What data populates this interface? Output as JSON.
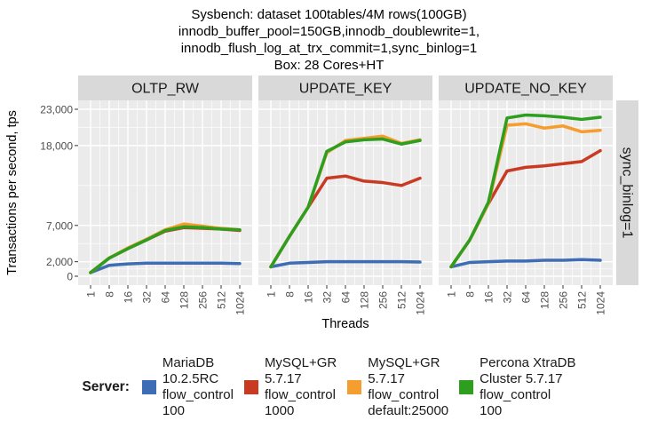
{
  "title_lines": [
    "Sysbench: dataset 100tables/4M rows(100GB)",
    "innodb_buffer_pool=150GB,innodb_doublewrite=1,",
    "innodb_flush_log_at_trx_commit=1,sync_binlog=1",
    "Box: 28 Cores+HT"
  ],
  "chart_data": {
    "type": "line",
    "facets": [
      "OLTP_RW",
      "UPDATE_KEY",
      "UPDATE_NO_KEY"
    ],
    "right_strip": "sync_binlog=1",
    "x": [
      1,
      8,
      16,
      32,
      64,
      128,
      256,
      512,
      1024
    ],
    "xlabel": "Threads",
    "ylabel": "Transactions per second, tps",
    "yticks": [
      0,
      2000,
      7000,
      18000,
      23000
    ],
    "ytick_labels": [
      "0",
      "2,000",
      "7,000",
      "18,000",
      "23,000"
    ],
    "ylim": [
      0,
      24200
    ],
    "legend_position": "bottom",
    "grid": true,
    "series": [
      {
        "name": "MariaDB 10.2.5RC flow_control 100",
        "color": "#3E6DB5",
        "values": {
          "OLTP_RW": [
            500,
            1500,
            1700,
            1800,
            1800,
            1800,
            1800,
            1800,
            1750
          ],
          "UPDATE_KEY": [
            1300,
            1800,
            1900,
            2000,
            2000,
            2000,
            2000,
            2000,
            1950
          ],
          "UPDATE_NO_KEY": [
            1300,
            1900,
            2000,
            2100,
            2100,
            2200,
            2200,
            2300,
            2200
          ]
        }
      },
      {
        "name": "MySQL+GR 5.7.17 flow_control 1000",
        "color": "#C93A23",
        "values": {
          "OLTP_RW": [
            500,
            2500,
            3800,
            5000,
            6200,
            6700,
            6600,
            6500,
            6300
          ],
          "UPDATE_KEY": [
            1300,
            5500,
            9500,
            13500,
            13800,
            13100,
            12900,
            12500,
            13500
          ],
          "UPDATE_NO_KEY": [
            1300,
            5000,
            10000,
            14500,
            15000,
            15200,
            15500,
            15800,
            17300
          ]
        }
      },
      {
        "name": "MySQL+GR 5.7.17 flow_control default:25000",
        "color": "#F59D2E",
        "values": {
          "OLTP_RW": [
            500,
            2500,
            3900,
            5100,
            6400,
            7200,
            6900,
            6600,
            6400
          ],
          "UPDATE_KEY": [
            1300,
            5500,
            9500,
            17000,
            18700,
            19000,
            19300,
            18300,
            18800
          ],
          "UPDATE_NO_KEY": [
            1300,
            5000,
            10000,
            20800,
            21000,
            20400,
            20700,
            19900,
            20100
          ]
        }
      },
      {
        "name": "Percona XtraDB Cluster 5.7.17 flow_control 100",
        "color": "#2E9E1F",
        "values": {
          "OLTP_RW": [
            500,
            2500,
            3800,
            5000,
            6300,
            6800,
            6700,
            6500,
            6400
          ],
          "UPDATE_KEY": [
            1300,
            5500,
            9500,
            17200,
            18500,
            18800,
            18900,
            18200,
            18700
          ],
          "UPDATE_NO_KEY": [
            1300,
            5000,
            10200,
            21800,
            22200,
            22100,
            21900,
            21600,
            21900
          ]
        }
      }
    ]
  },
  "legend": {
    "label": "Server:",
    "items": [
      {
        "color": "#3E6DB5",
        "lines": [
          "MariaDB",
          "10.2.5RC",
          "flow_control",
          "100"
        ]
      },
      {
        "color": "#C93A23",
        "lines": [
          "MySQL+GR",
          "5.7.17",
          "flow_control",
          "1000"
        ]
      },
      {
        "color": "#F59D2E",
        "lines": [
          "MySQL+GR",
          "5.7.17",
          "flow_control",
          "default:25000"
        ]
      },
      {
        "color": "#2E9E1F",
        "lines": [
          "Percona XtraDB",
          "Cluster 5.7.17",
          "flow_control",
          "100"
        ]
      }
    ]
  }
}
